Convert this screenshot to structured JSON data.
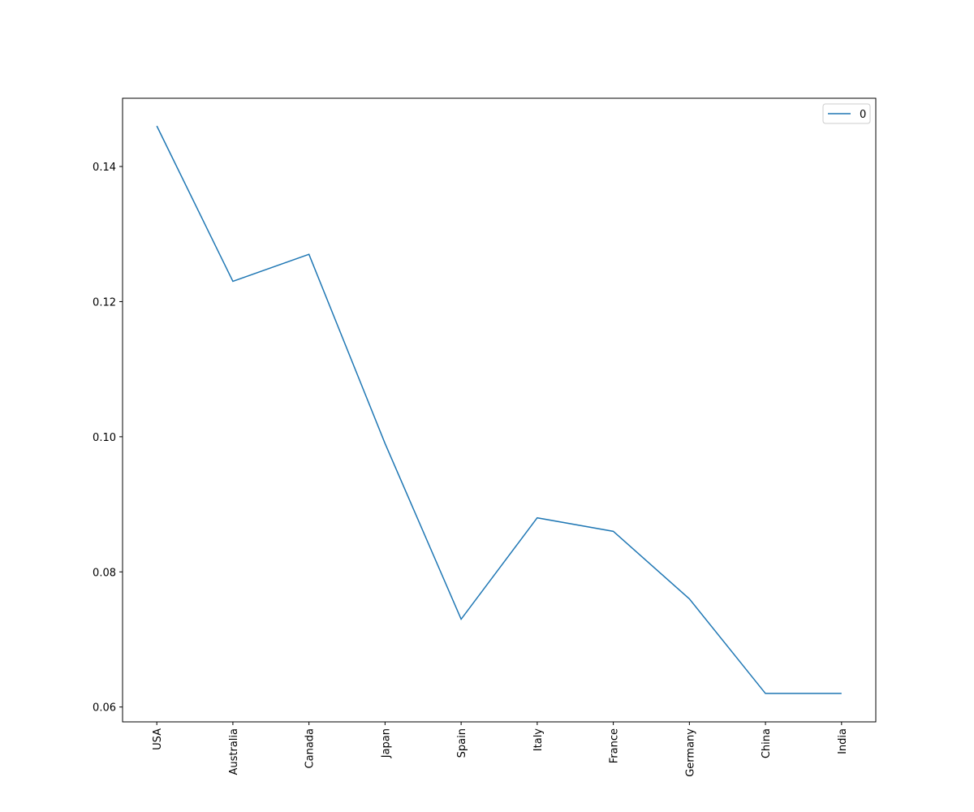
{
  "chart_data": {
    "type": "line",
    "categories": [
      "USA",
      "Australia",
      "Canada",
      "Japan",
      "Spain",
      "Italy",
      "France",
      "Germany",
      "China",
      "India"
    ],
    "series": [
      {
        "name": "0",
        "color": "#1f77b4",
        "values": [
          0.146,
          0.123,
          0.127,
          0.099,
          0.073,
          0.088,
          0.086,
          0.076,
          0.062,
          0.062
        ]
      }
    ],
    "ylim": [
      0.0578,
      0.1501
    ],
    "yticks": [
      {
        "value": 0.06,
        "label": "0.06"
      },
      {
        "value": 0.08,
        "label": "0.08"
      },
      {
        "value": 0.1,
        "label": "0.10"
      },
      {
        "value": 0.12,
        "label": "0.12"
      },
      {
        "value": 0.14,
        "label": "0.14"
      }
    ],
    "grid": false,
    "legend": "upper right"
  }
}
